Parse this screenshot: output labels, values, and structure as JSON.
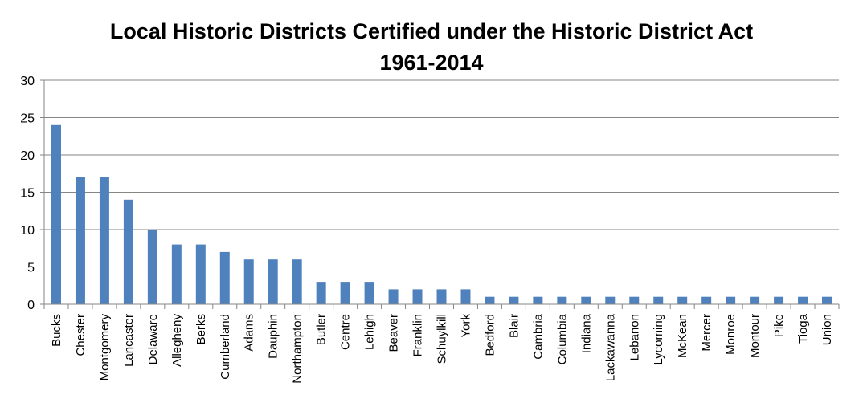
{
  "chart_data": {
    "type": "bar",
    "title": [
      "Local Historic Districts Certified under the Historic District Act",
      "1961-2014"
    ],
    "categories": [
      "Bucks",
      "Chester",
      "Montgomery",
      "Lancaster",
      "Delaware",
      "Allegheny",
      "Berks",
      "Cumberland",
      "Adams",
      "Dauphin",
      "Northampton",
      "Butler",
      "Centre",
      "Lehigh",
      "Beaver",
      "Franklin",
      "Schuylkill",
      "York",
      "Bedford",
      "Blair",
      "Cambria",
      "Columbia",
      "Indiana",
      "Lackawanna",
      "Lebanon",
      "Lycoming",
      "McKean",
      "Mercer",
      "Monroe",
      "Montour",
      "Pike",
      "Tioga",
      "Union"
    ],
    "values": [
      24,
      17,
      17,
      14,
      10,
      8,
      8,
      7,
      6,
      6,
      6,
      3,
      3,
      3,
      2,
      2,
      2,
      2,
      1,
      1,
      1,
      1,
      1,
      1,
      1,
      1,
      1,
      1,
      1,
      1,
      1,
      1,
      1
    ],
    "yticks": [
      0,
      5,
      10,
      15,
      20,
      25,
      30
    ],
    "ylim": [
      0,
      30
    ],
    "grid": true,
    "legend": "none",
    "bar_color": "#4f81bd",
    "gridline_color": "#868686"
  }
}
